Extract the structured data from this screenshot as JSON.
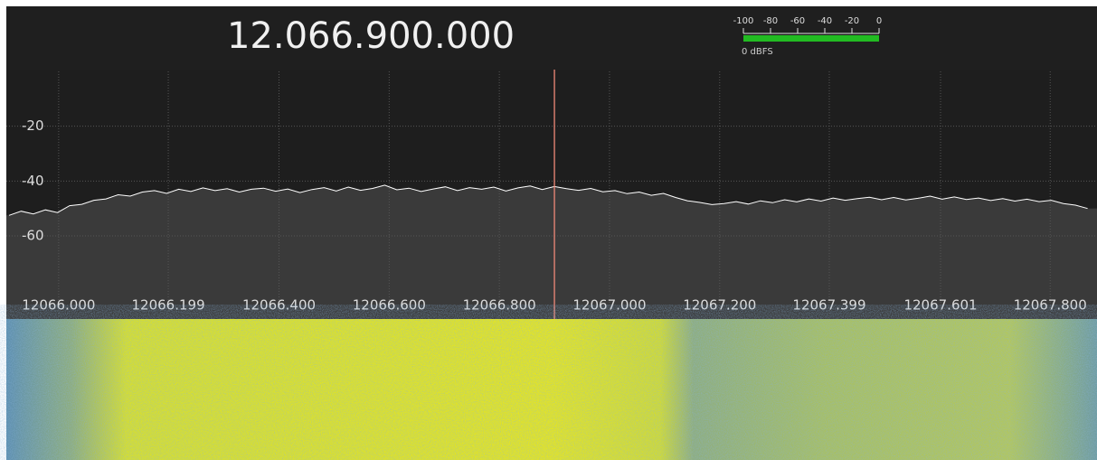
{
  "frequency_display": "12.066.900.000",
  "level_meter": {
    "scale_lim": [
      -100,
      0
    ],
    "scale_ticks": [
      -100,
      -80,
      -60,
      -40,
      -20,
      0
    ],
    "level": 0,
    "label": "0 dBFS",
    "color": "#22bb22"
  },
  "chart_data": {
    "type": "line",
    "x": [
      12065.91,
      12065.932,
      12065.954,
      12065.976,
      12065.998,
      12066.02,
      12066.042,
      12066.064,
      12066.086,
      12066.108,
      12066.13,
      12066.152,
      12066.174,
      12066.196,
      12066.218,
      12066.24,
      12066.262,
      12066.284,
      12066.306,
      12066.328,
      12066.35,
      12066.372,
      12066.394,
      12066.416,
      12066.438,
      12066.46,
      12066.482,
      12066.504,
      12066.526,
      12066.548,
      12066.57,
      12066.592,
      12066.614,
      12066.636,
      12066.658,
      12066.68,
      12066.702,
      12066.724,
      12066.746,
      12066.768,
      12066.79,
      12066.812,
      12066.834,
      12066.856,
      12066.878,
      12066.9,
      12066.922,
      12066.944,
      12066.966,
      12066.988,
      12067.01,
      12067.032,
      12067.054,
      12067.076,
      12067.098,
      12067.12,
      12067.142,
      12067.164,
      12067.186,
      12067.208,
      12067.23,
      12067.252,
      12067.274,
      12067.296,
      12067.318,
      12067.34,
      12067.362,
      12067.384,
      12067.406,
      12067.428,
      12067.45,
      12067.472,
      12067.494,
      12067.516,
      12067.538,
      12067.56,
      12067.582,
      12067.604,
      12067.626,
      12067.648,
      12067.67,
      12067.692,
      12067.714,
      12067.736,
      12067.758,
      12067.78,
      12067.802,
      12067.824,
      12067.846,
      12067.868
    ],
    "values": [
      -52.5,
      -51,
      -52,
      -50.5,
      -51.5,
      -49,
      -48.5,
      -47,
      -46.5,
      -45,
      -45.5,
      -44,
      -43.5,
      -44.5,
      -43,
      -43.8,
      -42.5,
      -43.5,
      -42.8,
      -44,
      -43,
      -42.6,
      -43.7,
      -42.9,
      -44.2,
      -43.1,
      -42.4,
      -43.6,
      -42.2,
      -43.4,
      -42.7,
      -41.5,
      -43.2,
      -42.6,
      -43.8,
      -42.9,
      -42.1,
      -43.5,
      -42.4,
      -43,
      -42.2,
      -43.6,
      -42.5,
      -41.8,
      -43.1,
      -42,
      -42.8,
      -43.4,
      -42.7,
      -43.9,
      -43.5,
      -44.6,
      -44,
      -45.2,
      -44.5,
      -46,
      -47.2,
      -47.8,
      -48.6,
      -48.2,
      -47.5,
      -48.4,
      -47.2,
      -47.9,
      -46.8,
      -47.6,
      -46.5,
      -47.3,
      -46.2,
      -47,
      -46.4,
      -45.9,
      -46.8,
      -46,
      -46.9,
      -46.3,
      -45.5,
      -46.6,
      -45.8,
      -46.7,
      -46.2,
      -47.1,
      -46.4,
      -47.3,
      -46.6,
      -47.5,
      -47,
      -48.2,
      -48.8,
      -50
    ],
    "color": "#ffffff",
    "fill_color": "#3a3a3a",
    "xlim": [
      12065.905,
      12067.885
    ],
    "xticks": [
      {
        "value": 12066,
        "label": "12066.000"
      },
      12066.199,
      {
        "value": 12066.4,
        "label": "12066.400"
      },
      {
        "value": 12066.6,
        "label": "12066.600"
      },
      {
        "value": 12066.8,
        "label": "12066.800"
      },
      {
        "value": 12067,
        "label": "12067.000"
      },
      {
        "value": 12067.2,
        "label": "12067.200"
      },
      12067.399,
      12067.601,
      {
        "value": 12067.8,
        "label": "12067.800"
      }
    ],
    "ylim": [
      -90,
      0
    ],
    "yticks": [
      -20,
      -40,
      -60
    ],
    "grid": true,
    "marker": {
      "x": 12066.9,
      "color": "#f08878"
    }
  }
}
